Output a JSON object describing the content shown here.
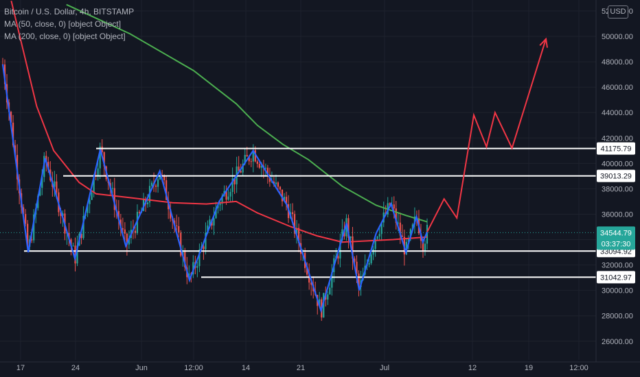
{
  "legend": {
    "symbol": "Bitcoin / U.S. Dollar, 4h, BITSTAMP",
    "ma50": "MA (50, close, 0) [object Object]",
    "ma200": "MA (200, close, 0) [object Object]"
  },
  "currency_badge": "USD",
  "y_axis": {
    "ticks": [
      "52000.00",
      "50000.00",
      "48000.00",
      "46000.00",
      "44000.00",
      "42000.00",
      "40000.00",
      "38000.00",
      "36000.00",
      "34000.00",
      "32000.00",
      "30000.00",
      "28000.00",
      "26000.00"
    ],
    "range": [
      24800,
      52000
    ]
  },
  "x_axis": {
    "labels": [
      "17",
      "24",
      "Jun",
      "12:00",
      "14",
      "21",
      "Jul",
      "12",
      "19",
      "12:00"
    ]
  },
  "levels": [
    {
      "label": "41175.79",
      "value": 41175.79,
      "color": "#ffffff"
    },
    {
      "label": "39013.29",
      "value": 39013.29,
      "color": "#ffffff"
    },
    {
      "label": "33094.92",
      "value": 33094.92,
      "color": "#ffffff"
    },
    {
      "label": "31042.97",
      "value": 31042.97,
      "color": "#ffffff"
    }
  ],
  "last_price": {
    "label": "34544.79",
    "countdown": "03:37:30",
    "value": 34544.79,
    "color": "#26a69a"
  },
  "colors": {
    "background": "#131722",
    "up": "#26a69a",
    "down": "#ef5350",
    "ma50": "#f23645",
    "ma200": "#4caf50",
    "pattern": "#2962ff",
    "projection": "#f23645",
    "level_line": "#ffffff"
  },
  "chart_data": {
    "type": "candlestick",
    "title": "Bitcoin / U.S. Dollar, 4h, BITSTAMP",
    "ylim": [
      24800,
      52000
    ],
    "series": [
      {
        "name": "MA (50, close, 0)",
        "points": [
          [
            0.02,
            52800
          ],
          [
            0.08,
            44500
          ],
          [
            0.12,
            41000
          ],
          [
            0.18,
            38500
          ],
          [
            0.22,
            37600
          ],
          [
            0.3,
            37300
          ],
          [
            0.4,
            36900
          ],
          [
            0.48,
            36800
          ],
          [
            0.55,
            37000
          ],
          [
            0.6,
            36100
          ],
          [
            0.68,
            35000
          ],
          [
            0.74,
            34300
          ],
          [
            0.8,
            33800
          ],
          [
            0.86,
            33900
          ],
          [
            0.92,
            34000
          ],
          [
            1.0,
            34200
          ]
        ]
      },
      {
        "name": "MA (200, close, 0)",
        "points": [
          [
            0.15,
            52500
          ],
          [
            0.3,
            50200
          ],
          [
            0.45,
            47300
          ],
          [
            0.55,
            44700
          ],
          [
            0.6,
            43000
          ],
          [
            0.66,
            41500
          ],
          [
            0.72,
            40300
          ],
          [
            0.8,
            38200
          ],
          [
            0.88,
            36700
          ],
          [
            0.95,
            35900
          ],
          [
            1.0,
            35400
          ]
        ]
      }
    ],
    "pattern_line": [
      [
        0,
        47800
      ],
      [
        0.06,
        33000
      ],
      [
        0.1,
        40400
      ],
      [
        0.17,
        32500
      ],
      [
        0.23,
        41100
      ],
      [
        0.29,
        33500
      ],
      [
        0.37,
        39400
      ],
      [
        0.44,
        30800
      ],
      [
        0.51,
        37000
      ],
      [
        0.59,
        41000
      ],
      [
        0.67,
        36700
      ],
      [
        0.75,
        28400
      ],
      [
        0.81,
        35300
      ],
      [
        0.84,
        30000
      ],
      [
        0.88,
        34500
      ],
      [
        0.915,
        36800
      ],
      [
        0.95,
        33000
      ],
      [
        0.975,
        35800
      ],
      [
        0.99,
        33800
      ],
      [
        1.0,
        34600
      ]
    ],
    "projection": [
      [
        1.0,
        34600
      ],
      [
        1.04,
        37200
      ],
      [
        1.07,
        35700
      ],
      [
        1.11,
        43800
      ],
      [
        1.14,
        41300
      ],
      [
        1.16,
        44000
      ],
      [
        1.2,
        41200
      ],
      [
        1.28,
        49800
      ]
    ]
  }
}
